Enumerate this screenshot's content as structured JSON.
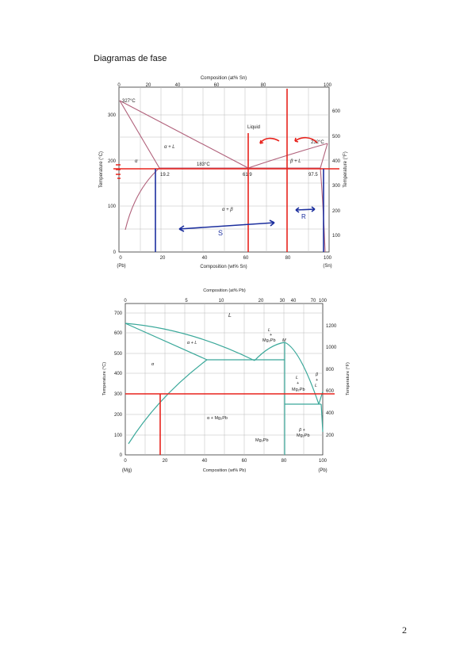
{
  "document": {
    "title": "Diagramas de fase",
    "page_number": "2"
  },
  "diagram1": {
    "top_axis_title": "Composition (at% Sn)",
    "top_ticks": [
      "0",
      "20",
      "40",
      "60",
      "80",
      "100"
    ],
    "bottom_axis_title": "Composition (wt% Sn)",
    "bottom_ticks": [
      "0",
      "20",
      "40",
      "60",
      "80",
      "100"
    ],
    "left_axis_title": "Temperature (°C)",
    "left_ticks": [
      "0",
      "100",
      "200",
      "300"
    ],
    "right_axis_title": "Temperature (°F)",
    "right_ticks": [
      "100",
      "200",
      "300",
      "400",
      "500",
      "600"
    ],
    "left_end": "(Pb)",
    "right_end": "(Sn)",
    "labels": {
      "t327": "327°C",
      "liquid": "Liquid",
      "alpha_l": "α + L",
      "alpha": "α",
      "beta_l": "β + L",
      "t183": "183°C",
      "c192": "19.2",
      "c619": "61.9",
      "c975": "97.5",
      "alpha_beta": "α + β",
      "t232": "232°C",
      "hand_s": "S",
      "hand_r": "R"
    },
    "colors": {
      "curve": "#b0607a",
      "red": "#e8231d",
      "blue": "#1c2f9e"
    }
  },
  "diagram2": {
    "top_axis_title": "Composition (at% Pb)",
    "top_ticks": [
      "0",
      "5",
      "10",
      "20",
      "30",
      "40",
      "70",
      "100"
    ],
    "bottom_axis_title": "Composition (wt% Pb)",
    "bottom_ticks": [
      "0",
      "20",
      "40",
      "60",
      "80",
      "100"
    ],
    "left_axis_title": "Temperature (°C)",
    "left_ticks": [
      "0",
      "100",
      "200",
      "300",
      "400",
      "500",
      "600",
      "700"
    ],
    "right_axis_title": "Temperature (°F)",
    "right_ticks": [
      "200",
      "400",
      "600",
      "800",
      "1000",
      "1200"
    ],
    "left_end": "(Mg)",
    "right_end": "(Pb)",
    "labels": {
      "L": "L",
      "alpha_l": "α + L",
      "alpha": "α",
      "l_mg2pb_l": "L",
      "l_mg2pb_plus": "+",
      "l_mg2pb_c": "Mg₂Pb",
      "M": "M",
      "l_right_l": "L",
      "l_right_plus": "+",
      "l_right_c": "Mg₂Pb",
      "beta": "β",
      "beta_plus": "+",
      "beta_L": "L",
      "alpha_mg2pb": "α + Mg₂Pb",
      "mg2pb": "Mg₂Pb",
      "beta_mg2pb_b": "β +",
      "beta_mg2pb_c": "Mg₂Pb"
    },
    "colors": {
      "curve": "#3aa89a",
      "red": "#e8231d"
    }
  }
}
